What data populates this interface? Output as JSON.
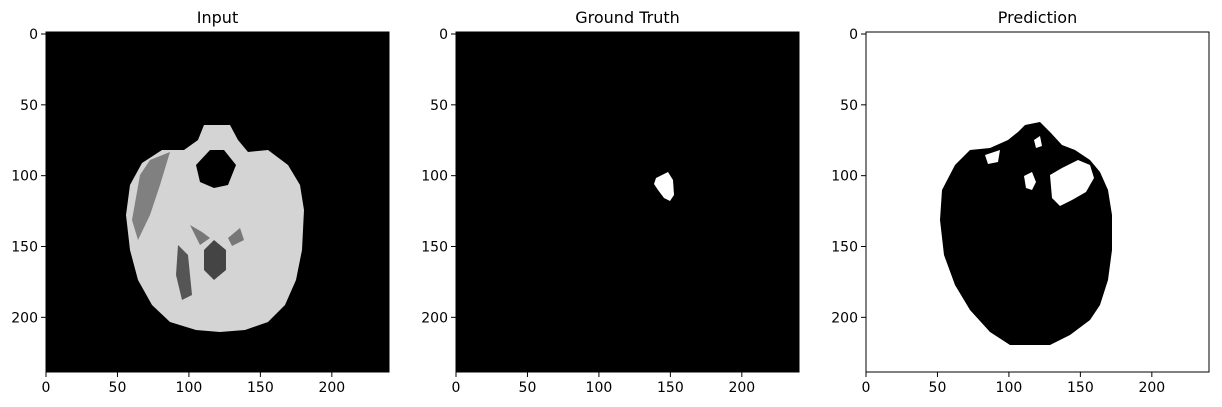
{
  "panels": [
    {
      "title": "Input",
      "kind": "mri-slice",
      "x_ticks": [
        "0",
        "50",
        "100",
        "150",
        "200"
      ],
      "y_ticks": [
        "0",
        "50",
        "100",
        "150",
        "200"
      ]
    },
    {
      "title": "Ground Truth",
      "kind": "mask-small",
      "x_ticks": [
        "0",
        "50",
        "100",
        "150",
        "200"
      ],
      "y_ticks": [
        "0",
        "50",
        "100",
        "150",
        "200"
      ]
    },
    {
      "title": "Prediction",
      "kind": "mask-inverted",
      "x_ticks": [
        "0",
        "50",
        "100",
        "150",
        "200"
      ],
      "y_ticks": [
        "0",
        "50",
        "100",
        "150",
        "200"
      ]
    }
  ],
  "colors": {
    "background": "#000000",
    "foreground": "#ffffff",
    "brain_gray": "#cfcfcf"
  }
}
